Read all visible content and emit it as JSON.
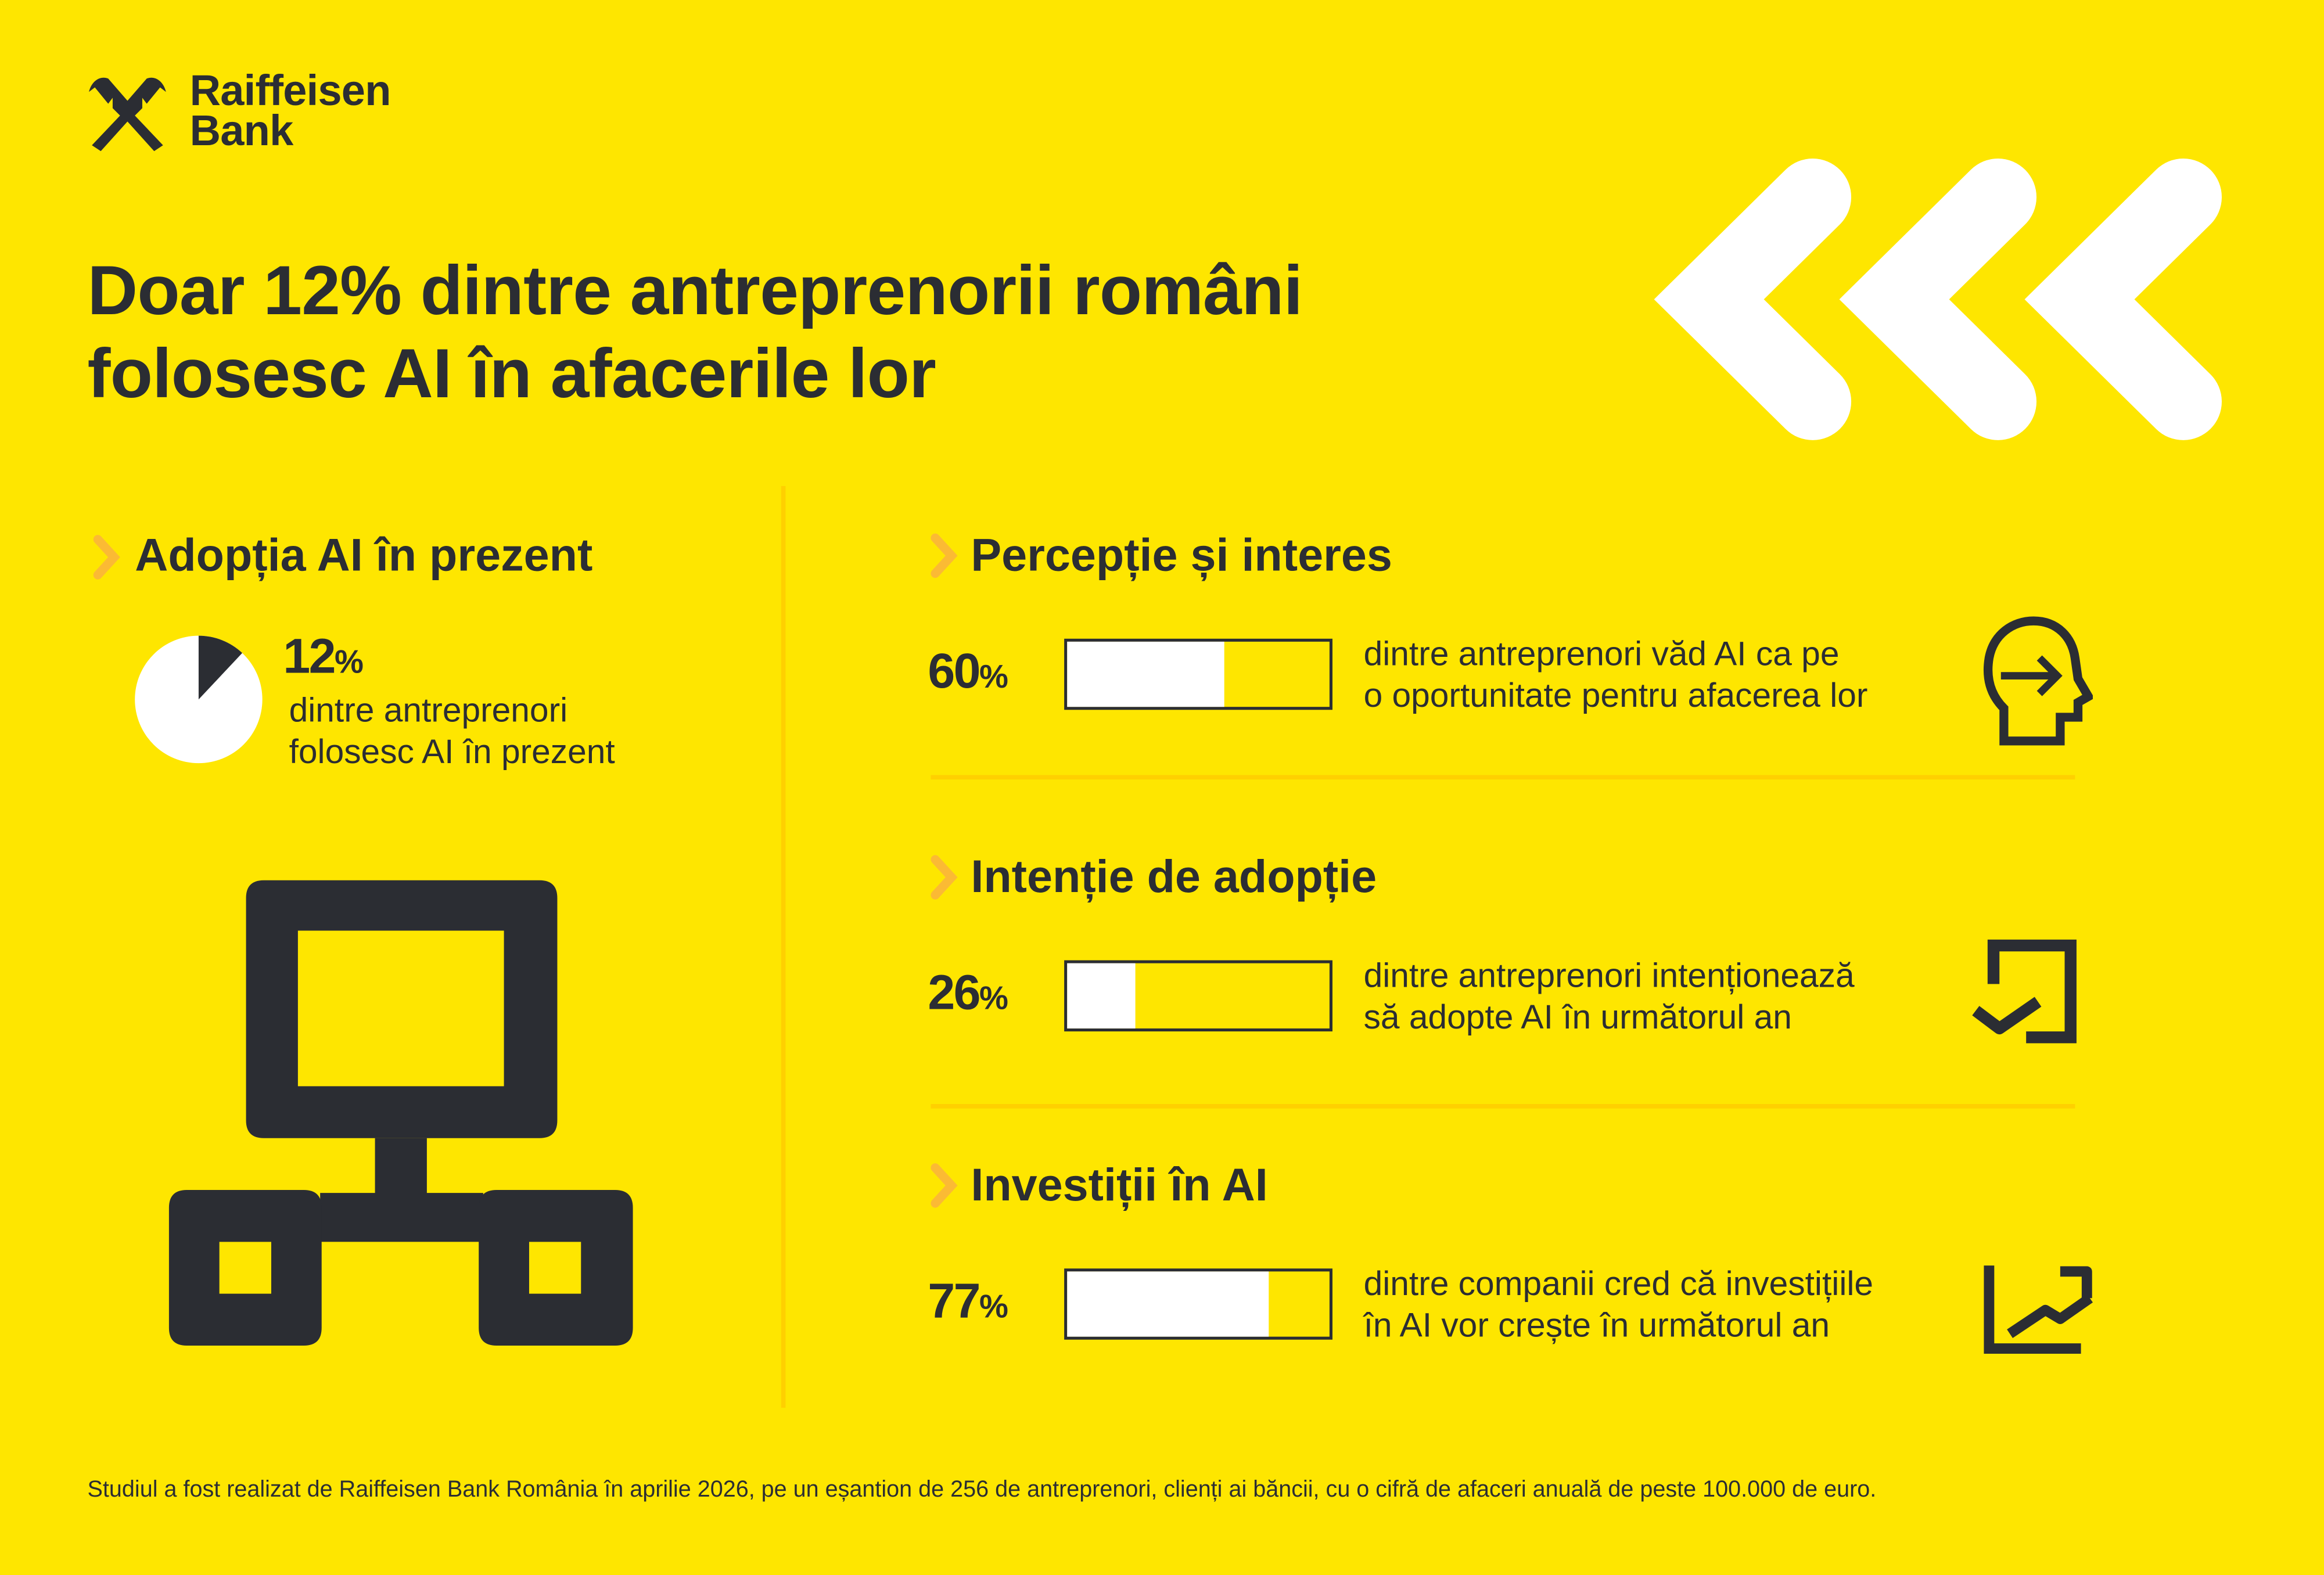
{
  "brand": {
    "name_line1": "Raiffeisen",
    "name_line2": "Bank",
    "logo": "raiffeisen-gable-cross-logo"
  },
  "title": {
    "line1": "Doar 12% dintre antreprenorii români",
    "line2": "folosesc AI în afacerile lor"
  },
  "colors": {
    "background": "#FEE600",
    "text": "#2B2D33",
    "accent_chevron": "#FBBA34",
    "bar_fill": "#FFFFFF",
    "divider": "#FFD000"
  },
  "left_section": {
    "heading": "Adopția AI în prezent",
    "stat_value": "12",
    "stat_unit": "%",
    "stat_fraction": 0.12,
    "desc_line1": "dintre antreprenori",
    "desc_line2": "folosesc AI în prezent",
    "illustration": "network-diagram-icon"
  },
  "sections": [
    {
      "heading": "Percepție și interes",
      "value": "60",
      "unit": "%",
      "fraction": 0.6,
      "desc_line1": "dintre antreprenori văd AI ca pe",
      "desc_line2": "o oportunitate pentru afacerea lor",
      "icon": "head-arrow-icon"
    },
    {
      "heading": "Intenție de adopție",
      "value": "26",
      "unit": "%",
      "fraction": 0.26,
      "desc_line1": "dintre antreprenori intenționează",
      "desc_line2": "să adopte AI în următorul an",
      "icon": "checkbox-check-icon"
    },
    {
      "heading": "Investiții în AI",
      "value": "77",
      "unit": "%",
      "fraction": 0.77,
      "desc_line1": "dintre companii cred că investițiile",
      "desc_line2": "în AI vor crește în următorul an",
      "icon": "trend-up-chart-icon"
    }
  ],
  "footer": "Studiul a fost realizat de Raiffeisen Bank România în aprilie 2026, pe un eșantion de 256 de antreprenori, clienți ai băncii, cu o cifră de afaceri anuală de peste 100.000 de euro."
}
